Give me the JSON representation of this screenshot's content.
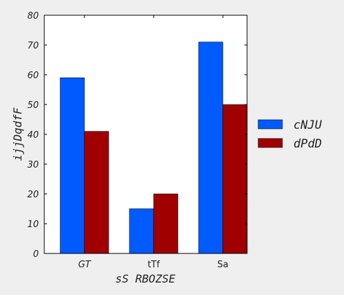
{
  "chart_data": {
    "type": "bar",
    "categories": [
      "GT",
      "tTf",
      "Sa"
    ],
    "category_italic": [
      true,
      false,
      false
    ],
    "series": [
      {
        "name": "cNJU",
        "color": "#005bff",
        "values": [
          59,
          15,
          71
        ]
      },
      {
        "name": "dPdD",
        "color": "#a00000",
        "values": [
          41,
          20,
          50
        ]
      }
    ],
    "xlabel": "sS RBOZSE",
    "ylabel": "ijjDqdfF",
    "ylim": [
      0,
      80
    ],
    "yticks": [
      0,
      10,
      20,
      30,
      40,
      50,
      60,
      70,
      80
    ],
    "grid": false,
    "legend_position": "right"
  }
}
